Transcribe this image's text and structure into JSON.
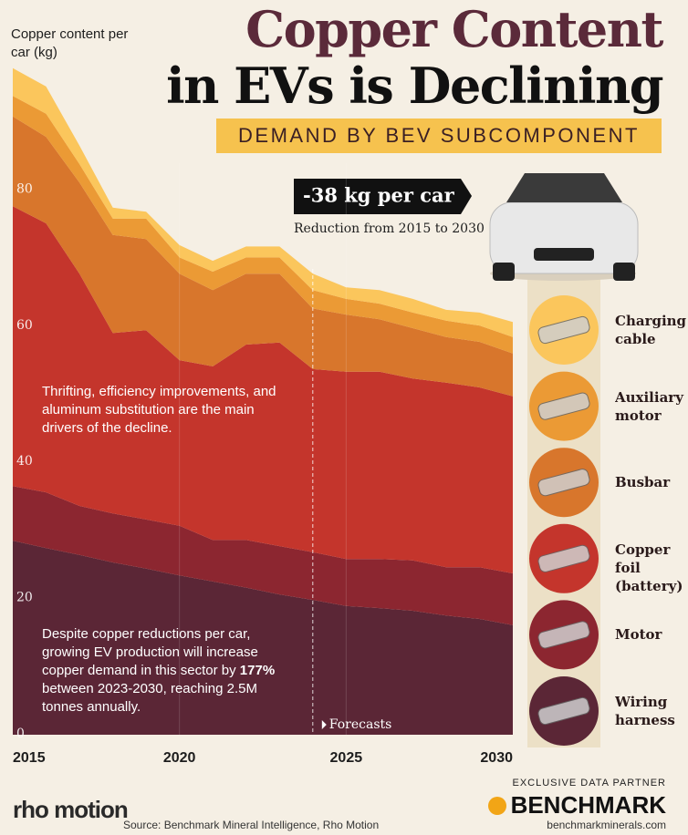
{
  "chart_data": {
    "type": "stacked-area",
    "title_line_1": "Copper Content",
    "title_line_2": "in EVs is Declining",
    "subtitle": "DEMAND BY BEV SUBCOMPONENT",
    "y_label": "Copper content per car (kg)",
    "callout": "-38 kg per car",
    "callout_note": "Reduction from 2015 to 2030",
    "note_1": "Thrifting, efficiency improvements, and aluminum substitution are the main drivers of the decline.",
    "note_2": [
      "Despite copper reductions per car, growing EV production will increase copper demand in this sector by ",
      "177%",
      " between 2023-2030, reaching 2.5M tonnes annually."
    ],
    "forecast_label": "Forecasts",
    "forecast_start": 2024,
    "x": [
      2015,
      2016,
      2017,
      2018,
      2019,
      2020,
      2021,
      2022,
      2023,
      2024,
      2025,
      2026,
      2027,
      2028,
      2029,
      2030
    ],
    "xlim": [
      2015,
      2030
    ],
    "xticks": [
      2015,
      2020,
      2025,
      2030
    ],
    "ylim": [
      0,
      100
    ],
    "yticks": [
      0,
      20,
      40,
      60,
      80
    ],
    "series": [
      {
        "name": "Wiring harness",
        "color": "#5b2636",
        "values": [
          28.5,
          27.4,
          26.4,
          25.3,
          24.4,
          23.4,
          22.5,
          21.6,
          20.6,
          19.8,
          18.9,
          18.6,
          18.2,
          17.5,
          17.0,
          16.1
        ]
      },
      {
        "name": "Motor",
        "color": "#8c2630",
        "values": [
          8.0,
          8.2,
          7.2,
          7.2,
          7.2,
          7.3,
          6.1,
          7.0,
          7.1,
          7.0,
          6.9,
          7.2,
          7.4,
          7.1,
          7.6,
          7.6
        ]
      },
      {
        "name": "Copper foil (battery)",
        "color": "#c4352c",
        "values": [
          41.1,
          39.5,
          34.1,
          26.5,
          27.8,
          24.3,
          25.5,
          28.7,
          29.9,
          26.9,
          27.5,
          27.5,
          26.7,
          27.1,
          26.4,
          26.0
        ]
      },
      {
        "name": "Busbar",
        "color": "#d8762c",
        "values": [
          13.2,
          12.7,
          13.4,
          14.4,
          13.4,
          12.7,
          11.2,
          10.4,
          10.1,
          8.9,
          8.4,
          7.7,
          7.4,
          6.7,
          6.7,
          6.3
        ]
      },
      {
        "name": "Auxiliary motor",
        "color": "#eb9a35",
        "values": [
          3.0,
          3.4,
          2.7,
          2.4,
          3.0,
          2.4,
          2.7,
          2.4,
          2.4,
          2.7,
          2.3,
          2.3,
          2.3,
          2.4,
          2.4,
          2.4
        ]
      },
      {
        "name": "Charging cable",
        "color": "#fbc65c",
        "values": [
          4.1,
          4.0,
          2.7,
          1.6,
          1.0,
          1.8,
          1.6,
          1.6,
          1.6,
          2.4,
          1.7,
          2.0,
          2.0,
          1.6,
          1.9,
          2.2
        ]
      }
    ],
    "logo": "rho motion",
    "source": "Source: Benchmark Mineral Intelligence, Rho Motion",
    "partner_label": "EXCLUSIVE DATA PARTNER",
    "partner": "BENCHMARK",
    "partner_url": "benchmarkminerals.com"
  }
}
